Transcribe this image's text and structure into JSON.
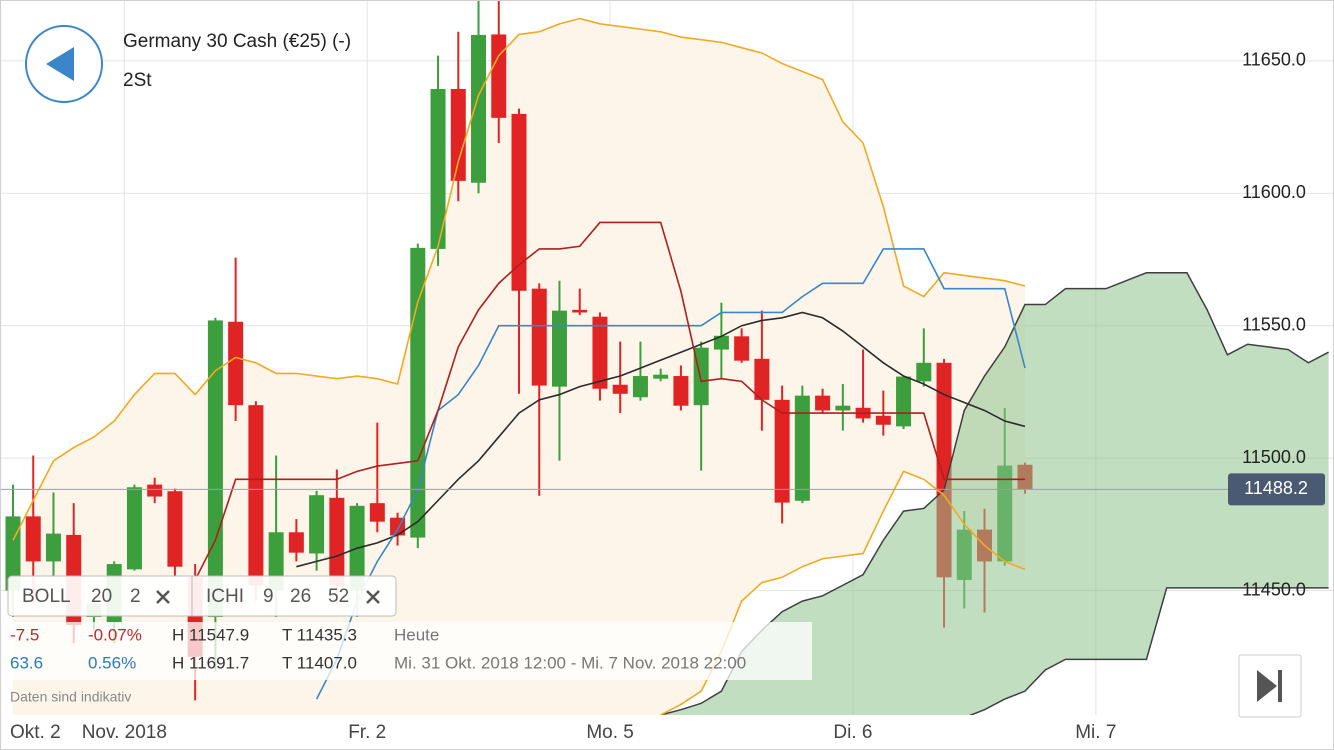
{
  "chart_data": {
    "type": "candlestick",
    "title": "Germany 30 Cash (€25) (-)",
    "subtitle": "2St",
    "categories": [
      null,
      null,
      null,
      null,
      null,
      null,
      null,
      null,
      null,
      null,
      null,
      null,
      null,
      null,
      null,
      null,
      null,
      null,
      null,
      null,
      null,
      null,
      null,
      null,
      null,
      null,
      null,
      null,
      null,
      null,
      null,
      null,
      null,
      null,
      null,
      null,
      null,
      null,
      null,
      null,
      null,
      null,
      null,
      null,
      null,
      null,
      null,
      null,
      null,
      null,
      null,
      null,
      null,
      null,
      null,
      null,
      null,
      null,
      null,
      null,
      null,
      null,
      null,
      null,
      null,
      null
    ],
    "open": [
      11450,
      11478,
      11461,
      11471,
      11440,
      11438,
      11458,
      11490,
      11487.5,
      11455,
      11440,
      11551.5,
      11520,
      11450,
      11472,
      11464,
      11485,
      11450,
      11483,
      11477.5,
      11470,
      11579,
      11639.4,
      11604,
      11660,
      11630,
      11564,
      11527,
      11556,
      11553.4,
      11527.7,
      11523,
      11530,
      11531,
      11520,
      11541,
      11546,
      11537.5,
      11522,
      11483.9,
      11523.6,
      11518,
      11519,
      11516,
      11512,
      11529,
      11536,
      11454,
      11473,
      11461,
      11497.5,
      null,
      null,
      null,
      null,
      null,
      null,
      null,
      null,
      null,
      null,
      null,
      null,
      null,
      null,
      null
    ],
    "high": [
      11490,
      11501,
      11487,
      11483,
      11448,
      11461,
      11490,
      11492.6,
      11488.5,
      11460,
      11553,
      11575.7,
      11521.5,
      11501,
      11477,
      11487.7,
      11495.7,
      11483,
      11513.4,
      11479.4,
      11581,
      11652,
      11661,
      11673,
      11673,
      11632,
      11566,
      11567,
      11564,
      11555,
      11544,
      11544,
      11533.8,
      11535,
      11544,
      11558.7,
      11549,
      11555.7,
      11527.4,
      11527.4,
      11526.2,
      11528,
      11541,
      11525.5,
      11531.1,
      11549,
      11537.5,
      11480,
      11480.9,
      11519,
      11498.3,
      null,
      null,
      null,
      null,
      null,
      null,
      null,
      null,
      null,
      null,
      null,
      null,
      null,
      null,
      null
    ],
    "low": [
      11440,
      11445,
      11455,
      11430,
      11435,
      11430,
      11457.5,
      11483,
      11455,
      11408.5,
      11420,
      11514,
      11446,
      11440,
      11461,
      11457.5,
      11445,
      11440,
      11472,
      11467,
      11466,
      11572.6,
      11597,
      11600,
      11619,
      11524.3,
      11485.8,
      11499,
      11554,
      11521.7,
      11517,
      11521.7,
      11529,
      11518,
      11495.3,
      11530,
      11536,
      11510.4,
      11475.3,
      11483,
      11516.8,
      11510.4,
      11513.4,
      11508.5,
      11511,
      11527,
      11436,
      11443.2,
      11441.7,
      11459.4,
      11486.6,
      null,
      null,
      null,
      null,
      null,
      null,
      null,
      null,
      null,
      null,
      null,
      null,
      null,
      null,
      null
    ],
    "close": [
      11478,
      11461,
      11471.5,
      11437,
      11445,
      11460,
      11489,
      11485.5,
      11459,
      11425,
      11552,
      11520,
      11452,
      11472,
      11464.3,
      11486,
      11452,
      11482,
      11476,
      11470.8,
      11579.4,
      11639.4,
      11604.7,
      11659.8,
      11628.5,
      11563.2,
      11527.4,
      11555.7,
      11555,
      11526.2,
      11524.3,
      11531,
      11531.5,
      11519.8,
      11541.7,
      11546.2,
      11536.8,
      11522,
      11483.2,
      11523.6,
      11518,
      11519.8,
      11515,
      11512.6,
      11530.8,
      11536,
      11455,
      11473,
      11461,
      11497.2,
      11488.2,
      null,
      null,
      null,
      null,
      null,
      null,
      null,
      null,
      null,
      null,
      null,
      null,
      null,
      null,
      null
    ],
    "up_color": "#3c9e3c",
    "down_color": "#e02424",
    "band_color": "#fdf5e9",
    "series": [
      {
        "color": "#f0aa22",
        "values": [
          11469,
          11484,
          11499,
          11504,
          11508,
          11514,
          11524,
          11532,
          11532,
          11524,
          11533,
          11538,
          11536,
          11532,
          11532,
          11531,
          11530,
          11531,
          11530,
          11528,
          11559,
          11580,
          11612,
          11637,
          11652,
          11660,
          11661,
          11664,
          11666,
          11664,
          11663,
          11662,
          11661,
          11659,
          11658,
          11657,
          11655,
          11653,
          11649,
          11646,
          11643,
          11627,
          11619,
          11595,
          11565,
          11561,
          11570,
          11569,
          11568,
          11567,
          11565,
          null,
          null,
          null,
          null,
          null,
          null,
          null,
          null,
          null,
          null,
          null,
          null,
          null,
          null,
          null
        ]
      },
      {
        "color": "#f0aa22",
        "values": [
          null,
          null,
          null,
          null,
          null,
          null,
          null,
          null,
          null,
          null,
          null,
          null,
          null,
          null,
          null,
          null,
          null,
          null,
          null,
          null,
          null,
          null,
          null,
          null,
          null,
          null,
          null,
          null,
          null,
          null,
          null,
          null,
          11403,
          11407,
          11412,
          11427,
          11446,
          11453,
          11455,
          11459,
          11462,
          11463,
          11464,
          11480,
          11495,
          11492,
          11486,
          11475,
          11467,
          11461,
          11458,
          null,
          null,
          null,
          null,
          null,
          null,
          null,
          null,
          null,
          null,
          null,
          null,
          null,
          null,
          null
        ]
      },
      {
        "color": "#2b2b2b",
        "values": [
          null,
          null,
          null,
          null,
          null,
          null,
          null,
          null,
          null,
          null,
          null,
          null,
          null,
          null,
          11459,
          11461,
          11463,
          11466,
          11468,
          11471,
          11476,
          11484,
          11492,
          11499,
          11508,
          11517,
          11522,
          11524,
          11527,
          11529,
          11531,
          11534,
          11537,
          11540,
          11543,
          11546,
          11550,
          11552,
          11553,
          11555,
          11553,
          11548,
          11542,
          11536,
          11531,
          11528,
          11524,
          11521,
          11518,
          11514,
          11512,
          null,
          null,
          null,
          null,
          null,
          null,
          null,
          null,
          null,
          null,
          null,
          null,
          null,
          null,
          null
        ]
      },
      {
        "color": "#3a86c8",
        "values": [
          null,
          null,
          null,
          null,
          null,
          null,
          null,
          null,
          null,
          null,
          null,
          null,
          null,
          null,
          null,
          11409,
          11424,
          11446,
          11461,
          11473,
          11488,
          11518,
          11524,
          11535,
          11550,
          11550,
          11550,
          11550,
          11550,
          11550,
          11550,
          11550,
          11550,
          11550,
          11550,
          11555,
          11555,
          11555,
          11555,
          11561,
          11566,
          11566,
          11566,
          11579,
          11579,
          11579,
          11564,
          11564,
          11564,
          11564,
          11534,
          null,
          null,
          null,
          null,
          null,
          null,
          null,
          null,
          null,
          null,
          null,
          null,
          null,
          null,
          null
        ]
      },
      {
        "color": "#b01e1e",
        "values": [
          null,
          null,
          null,
          null,
          null,
          null,
          null,
          null,
          null,
          11454,
          11469,
          11492,
          11492,
          11492,
          11492,
          11492,
          11492,
          11495,
          11497,
          11498,
          11499,
          11518,
          11542,
          11556,
          11566,
          11573,
          11579,
          11579,
          11580,
          11589,
          11589,
          11589,
          11589,
          11563,
          11529,
          11530,
          11529,
          11522,
          11517,
          11517,
          11517,
          11517,
          11517,
          11517,
          11517,
          11517,
          11492,
          11492,
          11492,
          11492,
          11492,
          null,
          null,
          null,
          null,
          null,
          null,
          null,
          null,
          null,
          null,
          null,
          null,
          null,
          null,
          null
        ]
      }
    ],
    "cloud": {
      "color": "#8ec28e",
      "edge_color": "#3f3f3f",
      "span_a": [
        null,
        null,
        null,
        null,
        null,
        null,
        null,
        null,
        null,
        null,
        null,
        null,
        null,
        null,
        null,
        null,
        null,
        null,
        null,
        null,
        null,
        null,
        null,
        null,
        null,
        null,
        null,
        null,
        null,
        null,
        null,
        null,
        11403,
        11405,
        11407.4,
        11412,
        11427,
        11435,
        11442,
        11446,
        11448,
        11452,
        11456,
        11469,
        11480,
        11481,
        11488,
        11518,
        11531,
        11542,
        11558,
        11558,
        11564,
        11564,
        11564,
        11567,
        11570,
        11570,
        11570,
        11556,
        11539,
        11543,
        11542,
        11541,
        11536,
        11540
      ],
      "span_b": [
        null,
        null,
        null,
        null,
        null,
        null,
        null,
        null,
        null,
        null,
        null,
        null,
        null,
        null,
        null,
        null,
        null,
        null,
        null,
        null,
        null,
        null,
        null,
        null,
        null,
        null,
        null,
        null,
        null,
        null,
        null,
        null,
        11400,
        11400,
        11400,
        11400,
        11400,
        11400,
        11400,
        11400,
        11400,
        11400,
        11400,
        11400,
        11400,
        11400,
        11400,
        11402,
        11405,
        11409,
        11412,
        11420,
        11424,
        11424,
        11424,
        11424,
        11424,
        11451,
        11451,
        11451,
        11451,
        11451,
        11451,
        11451,
        11451,
        11451
      ]
    },
    "ylim": [
      11403,
      11673
    ],
    "yticks": [
      {
        "value": 11450,
        "label": "11450.0"
      },
      {
        "value": 11500,
        "label": "11500.0"
      },
      {
        "value": 11550,
        "label": "11550.0"
      },
      {
        "value": 11600,
        "label": "11600.0"
      },
      {
        "value": 11650,
        "label": "11650.0"
      }
    ],
    "xticks": [
      {
        "value": 5.5,
        "label": "Nov. 2018"
      },
      {
        "value": 17.5,
        "label": "Fr. 2"
      },
      {
        "value": 29.5,
        "label": "Mo. 5"
      },
      {
        "value": 41.5,
        "label": "Di. 6"
      },
      {
        "value": 53.5,
        "label": "Mi. 7"
      }
    ],
    "x_edge_label": "Okt. 2",
    "last_price": 11488.2,
    "grid": true,
    "indicators": [
      {
        "name": "BOLL",
        "params": [
          20,
          2
        ]
      },
      {
        "name": "ICHI",
        "params": [
          9,
          26,
          52
        ]
      }
    ],
    "info_rows": [
      [
        "-7.5",
        "-0.07%",
        "H 11547.9",
        "T 11435.3",
        "Heute"
      ],
      [
        "63.6",
        "0.56%",
        "H 11691.7",
        "T 11407.0",
        "Mi. 31 Okt. 2018 12:00 - Mi. 7 Nov. 2018 22:00"
      ]
    ],
    "note": "Daten sind indikativ"
  }
}
